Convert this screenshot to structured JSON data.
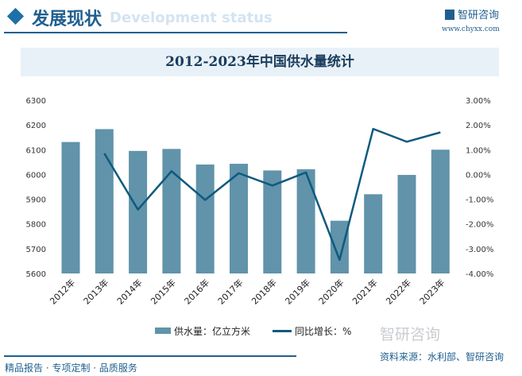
{
  "header": {
    "title": "发展现状",
    "subtitle": "Development status",
    "logo": "智研咨询",
    "url": "www.chyxx.com"
  },
  "chart_data": {
    "type": "bar+line",
    "title": "2012-2023年中国供水量统计",
    "categories": [
      "2012年",
      "2013年",
      "2014年",
      "2015年",
      "2016年",
      "2017年",
      "2018年",
      "2019年",
      "2020年",
      "2021年",
      "2022年",
      "2023年"
    ],
    "series": [
      {
        "name": "供水量：亿立方米",
        "type": "bar",
        "axis": "left",
        "values": [
          6131,
          6183,
          6095,
          6103,
          6040,
          6043,
          6016,
          6021,
          5813,
          5920,
          5998,
          6100
        ]
      },
      {
        "name": "同比增长：%",
        "type": "line",
        "axis": "right",
        "values": [
          null,
          0.85,
          -1.42,
          0.13,
          -1.03,
          0.05,
          -0.45,
          0.08,
          -3.45,
          1.84,
          1.32,
          1.7
        ]
      }
    ],
    "ylim_left": [
      5600,
      6300
    ],
    "yticks_left": [
      "5600",
      "5700",
      "5800",
      "5900",
      "6000",
      "6100",
      "6200",
      "6300"
    ],
    "ylim_right": [
      -4,
      3
    ],
    "yticks_right": [
      "-4.00%",
      "-3.00%",
      "-2.00%",
      "-1.00%",
      "0.00%",
      "1.00%",
      "2.00%",
      "3.00%"
    ],
    "legend": "bottom",
    "grid": false,
    "colors": {
      "bar": "#6193aa",
      "line": "#0e5a7e"
    }
  },
  "footer": {
    "watermark": "智研咨询",
    "source": "资料来源：水利部、智研咨询",
    "slogan": "精品报告 · 专项定制 · 品质服务"
  }
}
